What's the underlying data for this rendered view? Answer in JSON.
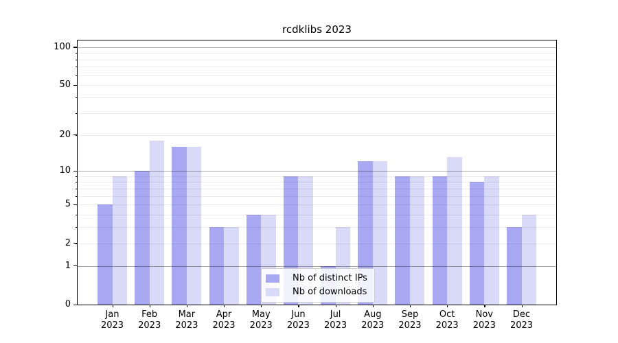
{
  "title": "rcdklibs 2023",
  "chart_data": {
    "type": "bar",
    "title": "rcdklibs 2023",
    "categories": [
      "Jan 2023",
      "Feb 2023",
      "Mar 2023",
      "Apr 2023",
      "May 2023",
      "Jun 2023",
      "Jul 2023",
      "Aug 2023",
      "Sep 2023",
      "Oct 2023",
      "Nov 2023",
      "Dec 2023"
    ],
    "category_month_labels": [
      "Jan",
      "Feb",
      "Mar",
      "Apr",
      "May",
      "Jun",
      "Jul",
      "Aug",
      "Sep",
      "Oct",
      "Nov",
      "Dec"
    ],
    "category_year_label": "2023",
    "series": [
      {
        "name": "Nb of distinct IPs",
        "color": "#a8a8f3",
        "values": [
          5,
          10,
          16,
          3,
          4,
          9,
          1,
          12,
          9,
          9,
          8,
          3
        ]
      },
      {
        "name": "Nb of downloads",
        "color": "#d9d9f8",
        "values": [
          9,
          18,
          16,
          3,
          4,
          9,
          3,
          12,
          9,
          13,
          9,
          4
        ]
      }
    ],
    "xlabel": "",
    "ylabel": "",
    "y_scale": "log10(1+x)",
    "ylim": [
      0,
      113
    ],
    "y_ticks": [
      0,
      1,
      2,
      5,
      10,
      20,
      50,
      100
    ],
    "y_minor_ticks": [
      2,
      3,
      4,
      5,
      6,
      7,
      8,
      9,
      20,
      30,
      40,
      50,
      60,
      70,
      80,
      90
    ],
    "y_major_gridlines": [
      1,
      10,
      100
    ],
    "grid": true,
    "legend_position": "lower center"
  },
  "legend": {
    "items": [
      {
        "label": "Nb of distinct IPs"
      },
      {
        "label": "Nb of downloads"
      }
    ]
  },
  "colors": {
    "background": "#ffffff",
    "bar_distinct_ips": "#a8a8f3",
    "bar_downloads": "#d9d9f8",
    "major_grid": "rgba(0,0,0,0.35)",
    "minor_grid": "rgba(0,0,0,0.08)",
    "axis": "#000000",
    "text": "#000000",
    "legend_border": "#cccccc",
    "legend_background": "rgba(255,255,255,0.85)"
  }
}
